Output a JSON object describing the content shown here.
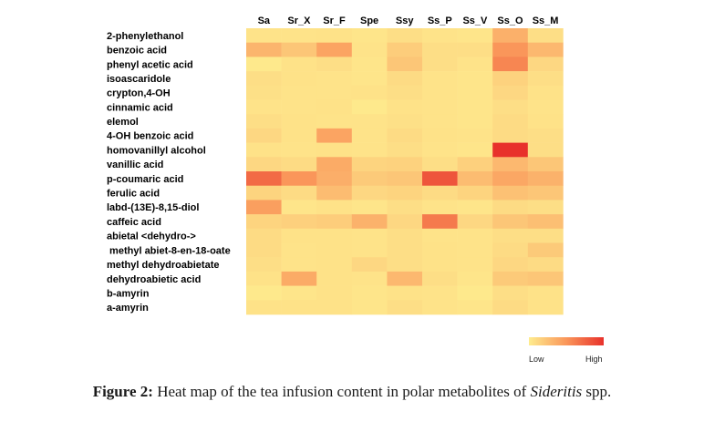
{
  "chart_data": {
    "type": "heatmap",
    "columns": [
      "Sa",
      "Sr_X",
      "Sr_F",
      "Spe",
      "Ssy",
      "Ss_P",
      "Ss_V",
      "Ss_O",
      "Ss_M"
    ],
    "rows": [
      "2-phenylethanol",
      "benzoic acid",
      "phenyl acetic acid",
      "isoascaridole",
      "crypton,4-OH",
      "cinnamic acid",
      "elemol",
      "4-OH benzoic acid",
      "homovanillyl alcohol",
      "vanillic acid",
      "p-coumaric acid",
      "ferulic acid",
      "labd-(13E)-8,15-diol",
      "caffeic acid",
      "abietal <dehydro->",
      " methyl abiet-8-en-18-oate",
      "methyl dehydroabietate",
      "dehydroabietic acid",
      "b-amyrin",
      "a-amyrin"
    ],
    "values": [
      [
        0.05,
        0.05,
        0.06,
        0.04,
        0.08,
        0.05,
        0.04,
        0.35,
        0.08
      ],
      [
        0.32,
        0.22,
        0.42,
        0.05,
        0.18,
        0.08,
        0.08,
        0.5,
        0.3
      ],
      [
        0.02,
        0.06,
        0.08,
        0.04,
        0.22,
        0.08,
        0.05,
        0.58,
        0.12
      ],
      [
        0.08,
        0.06,
        0.05,
        0.04,
        0.1,
        0.05,
        0.04,
        0.15,
        0.08
      ],
      [
        0.07,
        0.05,
        0.05,
        0.06,
        0.08,
        0.05,
        0.04,
        0.12,
        0.06
      ],
      [
        0.05,
        0.05,
        0.06,
        0.02,
        0.06,
        0.05,
        0.04,
        0.08,
        0.05
      ],
      [
        0.08,
        0.06,
        0.05,
        0.05,
        0.07,
        0.05,
        0.04,
        0.1,
        0.06
      ],
      [
        0.12,
        0.06,
        0.42,
        0.05,
        0.1,
        0.06,
        0.05,
        0.1,
        0.08
      ],
      [
        0.06,
        0.05,
        0.06,
        0.05,
        0.08,
        0.05,
        0.04,
        1.0,
        0.08
      ],
      [
        0.12,
        0.1,
        0.38,
        0.14,
        0.15,
        0.08,
        0.16,
        0.3,
        0.22
      ],
      [
        0.72,
        0.5,
        0.36,
        0.2,
        0.22,
        0.82,
        0.28,
        0.4,
        0.34
      ],
      [
        0.14,
        0.1,
        0.28,
        0.12,
        0.14,
        0.1,
        0.14,
        0.25,
        0.22
      ],
      [
        0.45,
        0.04,
        0.06,
        0.04,
        0.08,
        0.05,
        0.04,
        0.1,
        0.08
      ],
      [
        0.14,
        0.16,
        0.18,
        0.34,
        0.12,
        0.64,
        0.12,
        0.22,
        0.26
      ],
      [
        0.1,
        0.06,
        0.06,
        0.05,
        0.08,
        0.05,
        0.05,
        0.08,
        0.08
      ],
      [
        0.1,
        0.05,
        0.06,
        0.05,
        0.08,
        0.06,
        0.05,
        0.1,
        0.2
      ],
      [
        0.08,
        0.05,
        0.06,
        0.12,
        0.08,
        0.06,
        0.05,
        0.12,
        0.1
      ],
      [
        0.06,
        0.38,
        0.06,
        0.05,
        0.3,
        0.08,
        0.04,
        0.2,
        0.22
      ],
      [
        0.02,
        0.04,
        0.06,
        0.04,
        0.06,
        0.05,
        0.02,
        0.08,
        0.06
      ],
      [
        0.06,
        0.06,
        0.06,
        0.04,
        0.08,
        0.05,
        0.04,
        0.1,
        0.06
      ]
    ],
    "scale": {
      "low_label": "Low",
      "high_label": "High",
      "low_color": "#FEEC8E",
      "high_color": "#E8312B"
    }
  },
  "caption": {
    "figure_label": "Figure 2:",
    "text": " Heat map of the tea infusion content in polar metabolites of ",
    "species": "Sideritis",
    "suffix": " spp."
  }
}
